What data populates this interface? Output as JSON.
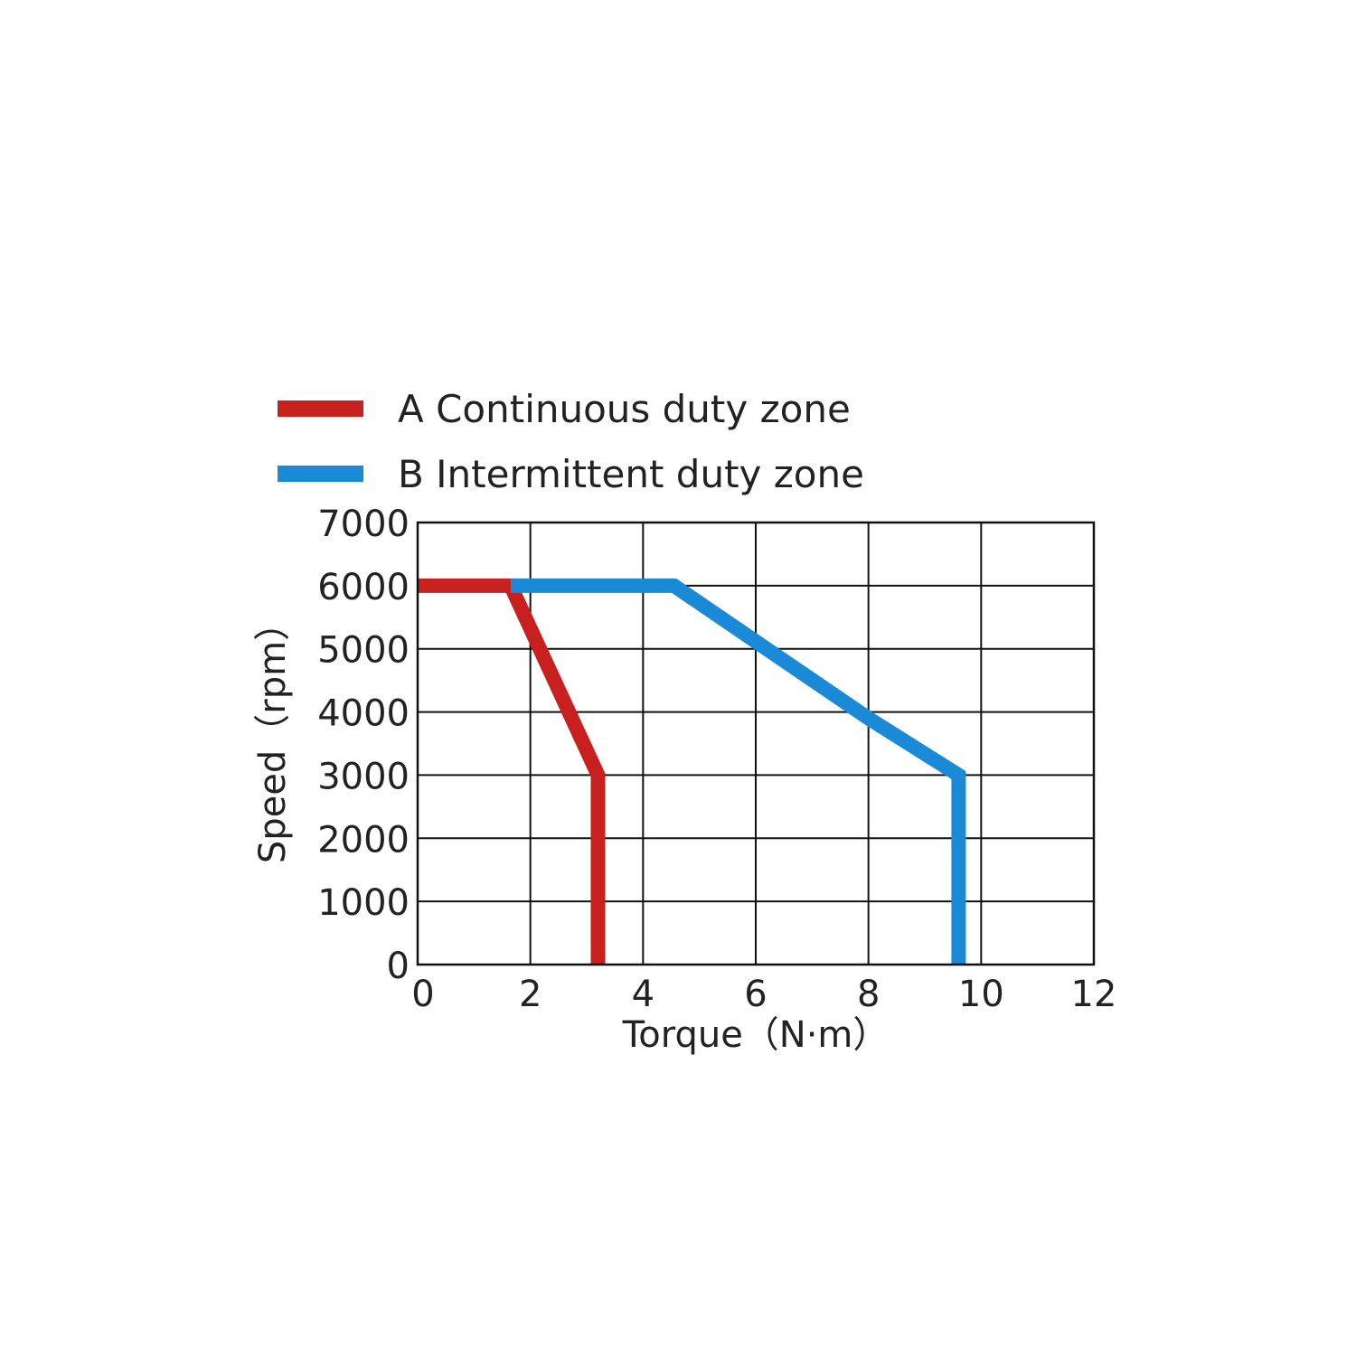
{
  "chart_data": {
    "type": "line",
    "title": "",
    "xlabel": "Torque（N·m）",
    "ylabel": "Speed（rpm）",
    "xlim": [
      0,
      12
    ],
    "ylim": [
      0,
      7000
    ],
    "x_ticks": [
      "0",
      "2",
      "4",
      "6",
      "8",
      "10",
      "12"
    ],
    "y_ticks": [
      "0",
      "1000",
      "2000",
      "3000",
      "4000",
      "5000",
      "6000",
      "7000"
    ],
    "grid": true,
    "legend_position": "top-left",
    "series": [
      {
        "name": "A Continuous duty zone",
        "color": "#c8201f",
        "points": [
          [
            0,
            6000
          ],
          [
            1.65,
            6000
          ],
          [
            3.2,
            3000
          ],
          [
            3.2,
            0
          ]
        ]
      },
      {
        "name": "B Intermittent duty zone",
        "color": "#1a8ad6",
        "points": [
          [
            1.65,
            6000
          ],
          [
            4.55,
            6000
          ],
          [
            8,
            3900
          ],
          [
            9.6,
            3000
          ],
          [
            9.6,
            0
          ]
        ]
      }
    ]
  }
}
